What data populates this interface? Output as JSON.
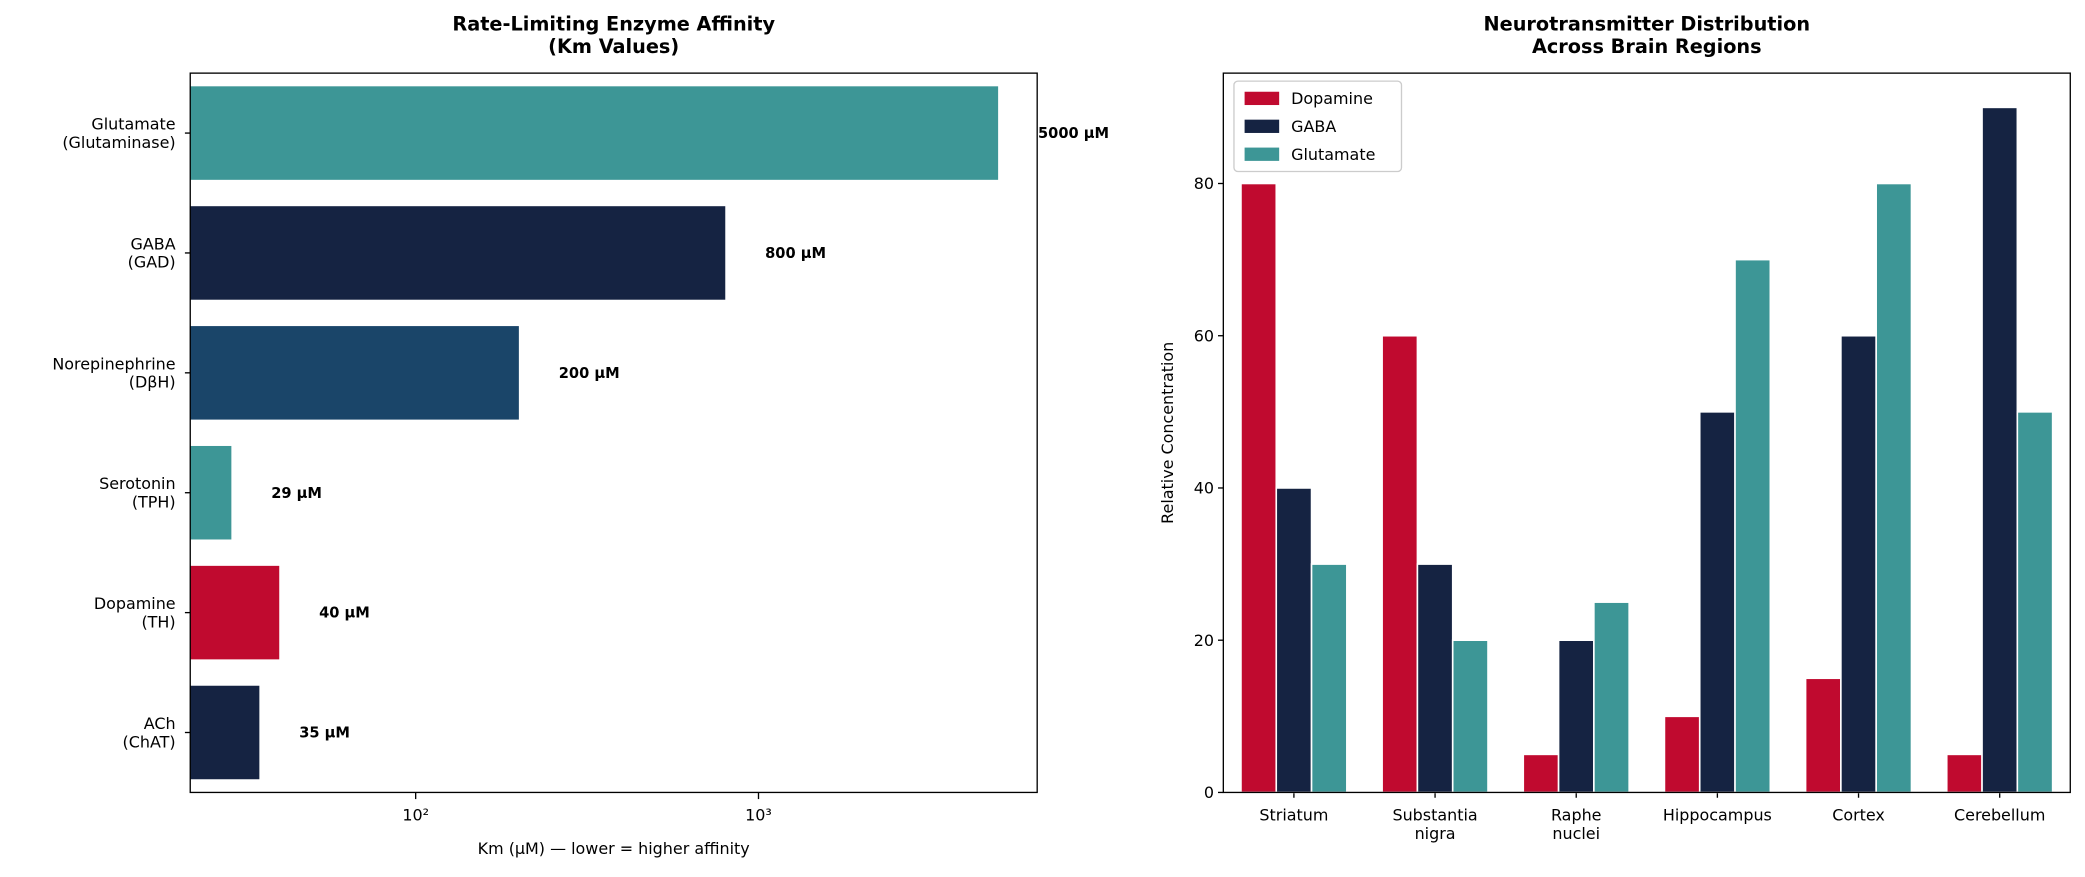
{
  "chart_data": [
    {
      "type": "barh",
      "title": "Rate-Limiting Enzyme Affinity\n(Km Values)",
      "xlabel": "Km (μM) — lower = higher affinity",
      "categories": [
        "Glutamate\n(Glutaminase)",
        "GABA\n(GAD)",
        "Norepinephrine\n(DβH)",
        "Serotonin\n(TPH)",
        "Dopamine\n(TH)",
        "ACh\n(ChAT)"
      ],
      "values": [
        5000,
        800,
        200,
        29,
        40,
        35
      ],
      "value_labels": [
        "5000 μM",
        "800 μM",
        "200 μM",
        "29 μM",
        "40 μM",
        "35 μM"
      ],
      "colors": [
        "#3d9696",
        "#152342",
        "#1a4569",
        "#3d9696",
        "#c00a2f",
        "#152342"
      ],
      "xscale": "log",
      "xlim": [
        22,
        6500
      ],
      "xticks": [
        {
          "value": 100,
          "label": "10²"
        },
        {
          "value": 1000,
          "label": "10³"
        }
      ]
    },
    {
      "type": "bar",
      "title": "Neurotransmitter Distribution\nAcross Brain Regions",
      "ylabel": "Relative Concentration",
      "categories": [
        "Striatum",
        "Substantia\nnigra",
        "Raphe\nnuclei",
        "Hippocampus",
        "Cortex",
        "Cerebellum"
      ],
      "series": [
        {
          "name": "Dopamine",
          "color": "#c00a2f",
          "values": [
            80,
            60,
            5,
            10,
            15,
            5
          ]
        },
        {
          "name": "GABA",
          "color": "#152342",
          "values": [
            40,
            30,
            20,
            50,
            60,
            90
          ]
        },
        {
          "name": "Glutamate",
          "color": "#3d9696",
          "values": [
            30,
            20,
            25,
            70,
            80,
            50
          ]
        }
      ],
      "ylim": [
        0,
        94.5
      ],
      "yticks": [
        0,
        20,
        40,
        60,
        80
      ],
      "legend": "upper left"
    }
  ]
}
